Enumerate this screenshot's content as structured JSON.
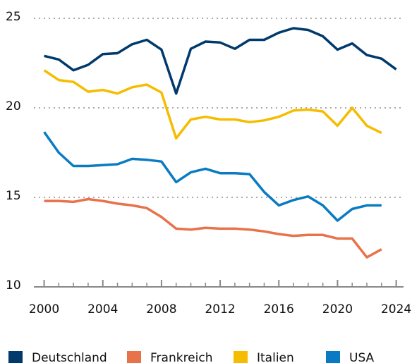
{
  "chart_data": {
    "type": "line",
    "x": [
      2000,
      2001,
      2002,
      2003,
      2004,
      2005,
      2006,
      2007,
      2008,
      2009,
      2010,
      2011,
      2012,
      2013,
      2014,
      2015,
      2016,
      2017,
      2018,
      2019,
      2020,
      2021,
      2022,
      2023,
      2024
    ],
    "series": [
      {
        "name": "Deutschland",
        "color": "#003a6c",
        "values": [
          22.9,
          22.7,
          22.1,
          22.4,
          23.0,
          23.05,
          23.55,
          23.8,
          23.25,
          20.8,
          23.3,
          23.7,
          23.65,
          23.3,
          23.8,
          23.8,
          24.2,
          24.45,
          24.35,
          24.0,
          23.25,
          23.6,
          22.95,
          22.75,
          22.15
        ]
      },
      {
        "name": "Frankreich",
        "color": "#e8724a",
        "values": [
          14.8,
          14.8,
          14.75,
          14.9,
          14.8,
          14.65,
          14.55,
          14.4,
          13.9,
          13.25,
          13.2,
          13.3,
          13.25,
          13.25,
          13.2,
          13.1,
          12.95,
          12.85,
          12.9,
          12.9,
          12.7,
          12.7,
          11.65,
          12.1,
          null
        ]
      },
      {
        "name": "Italien",
        "color": "#f5bc00",
        "values": [
          22.1,
          21.55,
          21.45,
          20.9,
          21.0,
          20.8,
          21.15,
          21.3,
          20.85,
          18.3,
          19.35,
          19.5,
          19.35,
          19.35,
          19.2,
          19.3,
          19.5,
          19.85,
          19.9,
          19.8,
          19.0,
          20.0,
          19.0,
          18.6,
          null
        ]
      },
      {
        "name": "USA",
        "color": "#0a7bc2",
        "values": [
          18.65,
          17.5,
          16.75,
          16.75,
          16.8,
          16.85,
          17.15,
          17.1,
          17.0,
          15.85,
          16.4,
          16.6,
          16.35,
          16.35,
          16.3,
          15.3,
          14.55,
          14.85,
          15.05,
          14.55,
          13.7,
          14.35,
          14.55,
          14.55,
          null
        ]
      }
    ],
    "xlim": [
      1999.3,
      2024.5
    ],
    "xticks": [
      2000,
      2004,
      2008,
      2012,
      2016,
      2020,
      2024
    ],
    "ylim": [
      10,
      25
    ],
    "yticks": [
      10,
      15,
      20,
      25
    ],
    "grid": true
  }
}
